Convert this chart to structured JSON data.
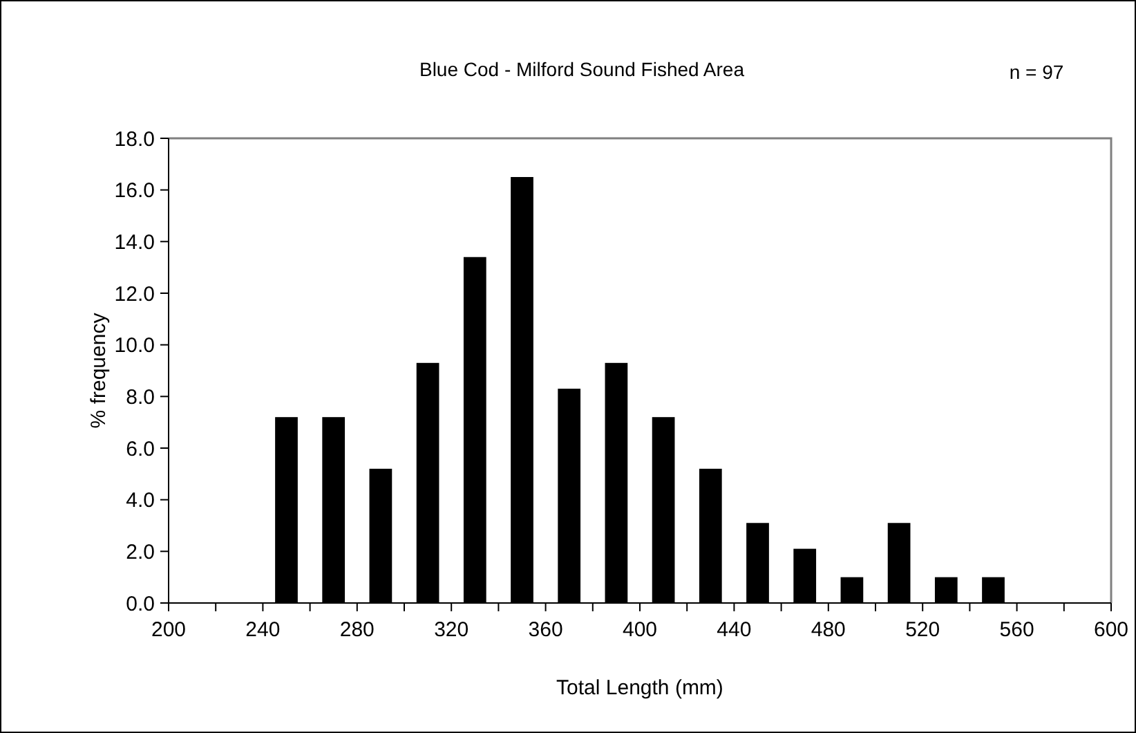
{
  "chart_data": {
    "type": "histogram",
    "title": "Blue Cod - Milford Sound Fished Area",
    "annotations": [
      "n = 97"
    ],
    "xlabel": "Total Length (mm)",
    "ylabel": "% frequency",
    "bins": [
      240,
      260,
      280,
      300,
      320,
      340,
      360,
      380,
      400,
      420,
      440,
      460,
      480,
      500,
      520,
      540,
      560
    ],
    "values": [
      7.2,
      7.2,
      5.2,
      9.3,
      13.4,
      16.5,
      8.3,
      9.3,
      7.2,
      5.2,
      3.1,
      2.1,
      1.0,
      3.1,
      1.0,
      1.0
    ],
    "color": "#000000",
    "xlim": [
      200,
      600
    ],
    "xticks": [
      200,
      {
        "value": 220,
        "label": null
      },
      240,
      {
        "value": 260,
        "label": null
      },
      280,
      {
        "value": 300,
        "label": null
      },
      320,
      {
        "value": 340,
        "label": null
      },
      360,
      {
        "value": 380,
        "label": null
      },
      400,
      {
        "value": 420,
        "label": null
      },
      440,
      {
        "value": 460,
        "label": null
      },
      480,
      {
        "value": 500,
        "label": null
      },
      520,
      {
        "value": 540,
        "label": null
      },
      560,
      {
        "value": 580,
        "label": null
      },
      600
    ],
    "ylim": [
      0,
      18
    ],
    "yticks": [
      {
        "value": 0,
        "label": "0.0"
      },
      {
        "value": 2,
        "label": "2.0"
      },
      {
        "value": 4,
        "label": "4.0"
      },
      {
        "value": 6,
        "label": "6.0"
      },
      {
        "value": 8,
        "label": "8.0"
      },
      {
        "value": 10,
        "label": "10.0"
      },
      {
        "value": 12,
        "label": "12.0"
      },
      {
        "value": 14,
        "label": "14.0"
      },
      {
        "value": 16,
        "label": "16.0"
      },
      {
        "value": 18,
        "label": "18.0"
      }
    ],
    "grid": false
  }
}
